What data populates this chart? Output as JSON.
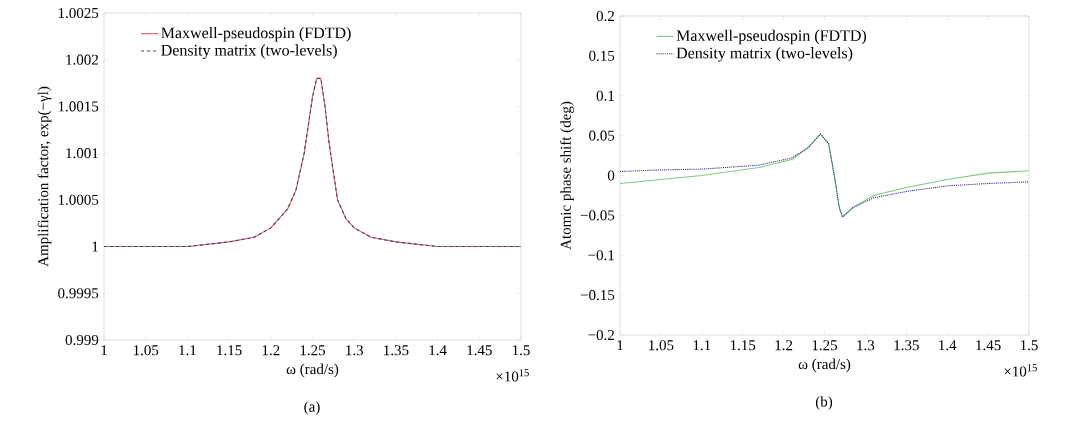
{
  "chart_data": [
    {
      "type": "line",
      "xlabel": "ω (rad/s)",
      "ylabel": "Amplification factor, exp(−γl)",
      "annotations": [
        "×10$^{15}$",
        "(a)"
      ],
      "xlim": [
        1,
        1.5
      ],
      "ylim": [
        0.999,
        1.0025
      ],
      "xticks": [
        1,
        1.05,
        1.1,
        1.15,
        1.2,
        1.25,
        1.3,
        1.35,
        1.4,
        1.45,
        1.5
      ],
      "yticks": [
        0.999,
        0.9995,
        1,
        1.0005,
        1.001,
        1.0015,
        1.002,
        1.0025
      ],
      "grid": false,
      "legend": "top left",
      "x": [
        1.0,
        1.05,
        1.1,
        1.15,
        1.18,
        1.2,
        1.21,
        1.22,
        1.23,
        1.24,
        1.245,
        1.25,
        1.255,
        1.26,
        1.265,
        1.27,
        1.275,
        1.28,
        1.29,
        1.3,
        1.32,
        1.35,
        1.4,
        1.45,
        1.5
      ],
      "series": [
        {
          "name": "Maxwell-pseudospin (FDTD)",
          "color": "#e06060",
          "line_style": "solid",
          "values": [
            1.0,
            1.0,
            1.0,
            1.00005,
            1.0001,
            1.0002,
            1.0003,
            1.0004,
            1.0006,
            1.001,
            1.0013,
            1.0016,
            1.0018,
            1.0018,
            1.0015,
            1.0011,
            1.0008,
            1.0005,
            1.0003,
            1.0002,
            1.0001,
            1.00005,
            1.0,
            1.0,
            1.0
          ]
        },
        {
          "name": "Density matrix (two-levels)",
          "color": "#404060",
          "line_style": "dashed",
          "values": [
            1.0,
            1.0,
            1.0,
            1.00005,
            1.0001,
            1.0002,
            1.0003,
            1.0004,
            1.0006,
            1.001,
            1.0013,
            1.0016,
            1.0018,
            1.0018,
            1.0015,
            1.0011,
            1.0008,
            1.0005,
            1.0003,
            1.0002,
            1.0001,
            1.00005,
            1.0,
            1.0,
            1.0
          ]
        }
      ]
    },
    {
      "type": "line",
      "xlabel": "ω (rad/s)",
      "ylabel": "Atomic phase shift (deg)",
      "annotations": [
        "×10$^{15}$",
        "(b)"
      ],
      "xlim": [
        1,
        1.5
      ],
      "ylim": [
        -0.2,
        0.2
      ],
      "xticks": [
        1,
        1.05,
        1.1,
        1.15,
        1.2,
        1.25,
        1.3,
        1.35,
        1.4,
        1.45,
        1.5
      ],
      "yticks": [
        {
          "value": -0.2,
          "label": "−0.2"
        },
        {
          "value": -0.15,
          "label": "−0.15"
        },
        {
          "value": -0.1,
          "label": "−0.1"
        },
        {
          "value": -0.05,
          "label": "−0.05"
        },
        0,
        0.05,
        0.1,
        0.15,
        0.2
      ],
      "grid": false,
      "legend": "top left",
      "x": [
        1.0,
        1.05,
        1.1,
        1.17,
        1.21,
        1.23,
        1.245,
        1.255,
        1.262,
        1.268,
        1.272,
        1.285,
        1.31,
        1.35,
        1.4,
        1.45,
        1.5
      ],
      "series": [
        {
          "name": "Maxwell-pseudospin (FDTD)",
          "color": "#80c880",
          "line_style": "solid",
          "values": [
            -0.01,
            -0.005,
            0.0,
            0.01,
            0.02,
            0.035,
            0.052,
            0.04,
            0.0,
            -0.04,
            -0.052,
            -0.04,
            -0.025,
            -0.015,
            -0.005,
            0.003,
            0.006
          ]
        },
        {
          "name": "Density matrix (two-levels)",
          "color": "#303090",
          "line_style": "dotted",
          "values": [
            0.005,
            0.007,
            0.008,
            0.013,
            0.022,
            0.035,
            0.052,
            0.04,
            0.0,
            -0.04,
            -0.052,
            -0.04,
            -0.028,
            -0.02,
            -0.013,
            -0.01,
            -0.008
          ]
        }
      ]
    }
  ]
}
